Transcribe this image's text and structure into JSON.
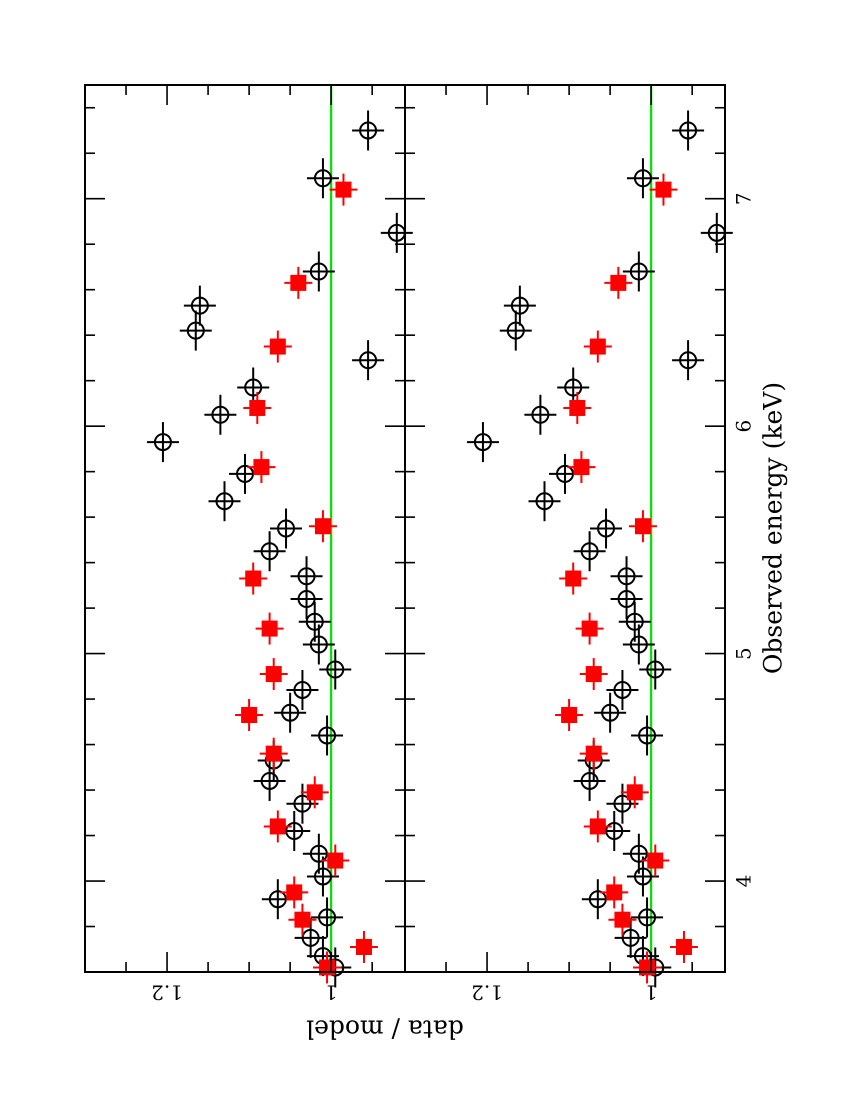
{
  "chart_data": {
    "type": "scatter",
    "orientation": "rotated-90-landscape-plot",
    "xlabel": "Observed energy (keV)",
    "ylabel": "data / model",
    "xlim": [
      3.6,
      7.5
    ],
    "ylim_top_panel": [
      0.91,
      1.3
    ],
    "ylim_bottom_panel": [
      0.91,
      1.3
    ],
    "x_major_ticks": [
      4,
      5,
      6,
      7
    ],
    "x_tick_labels": [
      "4",
      "5",
      "6",
      "7"
    ],
    "y_major_ticks": [
      1.0,
      1.2
    ],
    "y_tick_labels": [
      "1",
      "1.2"
    ],
    "reference_line": {
      "value": 1.0,
      "color": "#00e000"
    },
    "panels": [
      {
        "name": "top",
        "series": [
          {
            "name": "black-open-circles",
            "color": "#000000",
            "marker": "open-circle-cross",
            "x": [
              3.62,
              3.67,
              3.75,
              3.84,
              3.92,
              4.02,
              4.12,
              4.22,
              4.34,
              4.44,
              4.53,
              4.64,
              4.74,
              4.84,
              4.93,
              5.04,
              5.14,
              5.24,
              5.34,
              5.45,
              5.55,
              5.67,
              5.79,
              5.93,
              6.05,
              6.17,
              6.29,
              6.42,
              6.53,
              6.68,
              6.85,
              7.09,
              7.3
            ],
            "y": [
              0.995,
              1.01,
              1.025,
              1.005,
              1.065,
              1.01,
              1.015,
              1.045,
              1.035,
              1.075,
              1.07,
              1.005,
              1.05,
              1.035,
              0.995,
              1.015,
              1.02,
              1.03,
              1.03,
              1.075,
              1.055,
              1.13,
              1.105,
              1.205,
              1.135,
              1.095,
              0.955,
              1.165,
              1.16,
              1.015,
              0.92,
              1.01,
              0.955
            ]
          },
          {
            "name": "red-filled-squares",
            "color": "#ff0000",
            "marker": "filled-square-cross",
            "x": [
              3.62,
              3.71,
              3.83,
              3.95,
              4.09,
              4.24,
              4.39,
              4.56,
              4.73,
              4.91,
              5.11,
              5.33,
              5.56,
              5.82,
              6.08,
              6.35,
              6.63,
              7.04
            ],
            "y": [
              1.005,
              0.96,
              1.035,
              1.045,
              0.995,
              1.065,
              1.02,
              1.07,
              1.1,
              1.07,
              1.075,
              1.095,
              1.01,
              1.085,
              1.09,
              1.065,
              1.04,
              0.985
            ]
          }
        ]
      },
      {
        "name": "bottom",
        "series": [
          {
            "name": "black-open-circles",
            "color": "#000000",
            "marker": "open-circle-cross",
            "x": [
              3.62,
              3.67,
              3.75,
              3.84,
              3.92,
              4.02,
              4.12,
              4.22,
              4.34,
              4.44,
              4.53,
              4.64,
              4.74,
              4.84,
              4.93,
              5.04,
              5.14,
              5.24,
              5.34,
              5.45,
              5.55,
              5.67,
              5.79,
              5.93,
              6.05,
              6.17,
              6.29,
              6.42,
              6.53,
              6.68,
              6.85,
              7.09,
              7.3
            ],
            "y": [
              0.995,
              1.01,
              1.025,
              1.005,
              1.065,
              1.01,
              1.015,
              1.045,
              1.035,
              1.075,
              1.07,
              1.005,
              1.05,
              1.035,
              0.995,
              1.015,
              1.02,
              1.03,
              1.03,
              1.075,
              1.055,
              1.13,
              1.105,
              1.205,
              1.135,
              1.095,
              0.955,
              1.165,
              1.16,
              1.015,
              0.92,
              1.01,
              0.955
            ]
          },
          {
            "name": "red-filled-squares",
            "color": "#ff0000",
            "marker": "filled-square-cross",
            "x": [
              3.62,
              3.71,
              3.83,
              3.95,
              4.09,
              4.24,
              4.39,
              4.56,
              4.73,
              4.91,
              5.11,
              5.33,
              5.56,
              5.82,
              6.08,
              6.35,
              6.63,
              7.04
            ],
            "y": [
              1.005,
              0.96,
              1.035,
              1.045,
              0.995,
              1.065,
              1.02,
              1.07,
              1.1,
              1.07,
              1.075,
              1.095,
              1.01,
              1.085,
              1.09,
              1.065,
              1.04,
              0.985
            ]
          }
        ]
      }
    ]
  }
}
